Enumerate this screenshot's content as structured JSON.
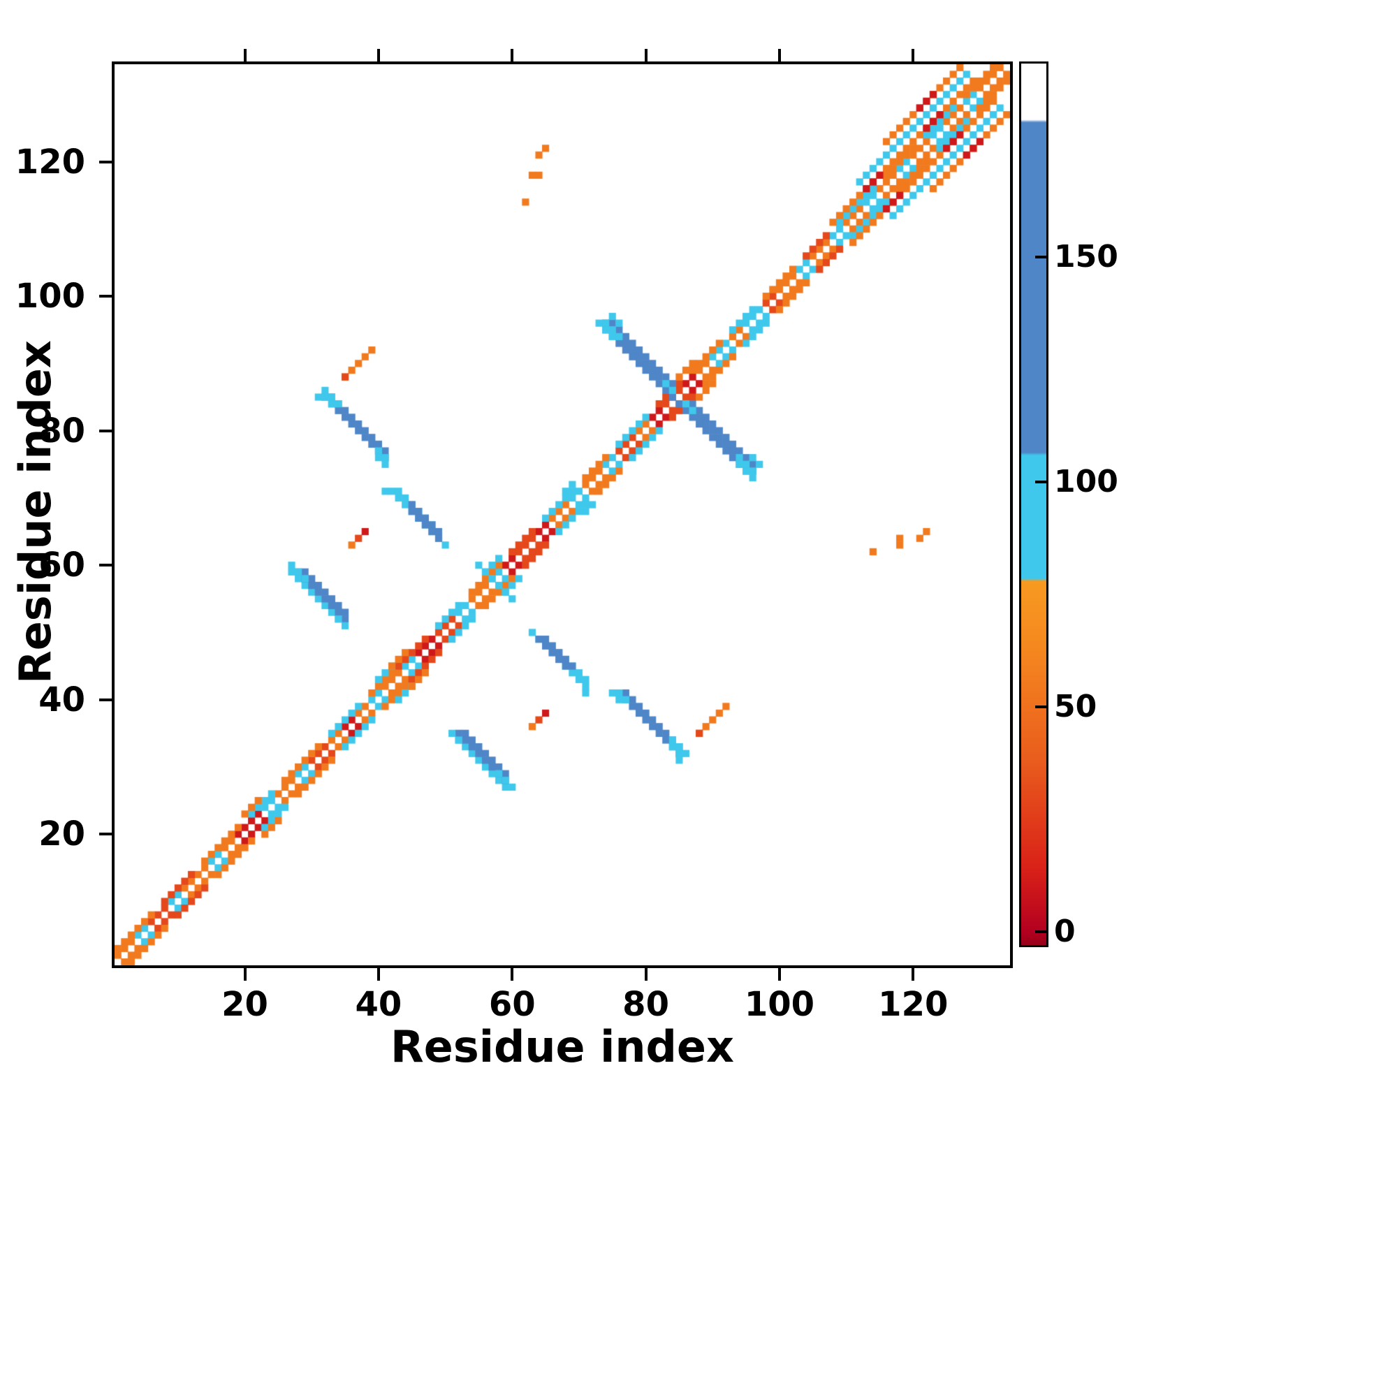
{
  "figure": {
    "xlabel": "Residue index",
    "ylabel": "Residue index",
    "x_ticks": [
      20,
      40,
      60,
      80,
      100,
      120
    ],
    "y_ticks": [
      20,
      40,
      60,
      80,
      100,
      120
    ],
    "n_residues": 134,
    "background": "#ffffff"
  },
  "colorbar": {
    "ticks": [
      0,
      50,
      100,
      150
    ],
    "vmin": -3,
    "vmax": 193,
    "stops": [
      [
        -3,
        "#96001a"
      ],
      [
        0,
        "#b30020"
      ],
      [
        14,
        "#d92118"
      ],
      [
        38,
        "#e95c1d"
      ],
      [
        62,
        "#f5861f"
      ],
      [
        78,
        "#f79a21"
      ],
      [
        78.6,
        "#3fc8ec"
      ],
      [
        106,
        "#3fc8ec"
      ],
      [
        106.6,
        "#4f86c8"
      ],
      [
        180,
        "#4f86c8"
      ],
      [
        180.6,
        "#ffffff"
      ],
      [
        193,
        "#ffffff"
      ]
    ]
  },
  "chart_data": {
    "type": "heatmap",
    "title": "",
    "xlabel": "Residue index",
    "ylabel": "Residue index",
    "xlim": [
      0.5,
      134.5
    ],
    "ylim": [
      0.5,
      134.5
    ],
    "grid": false,
    "legend_position": "right-colorbar",
    "symmetric": true,
    "runs_format": "[i_start, j_start, di, dj, n_cells, value]; each cell (i,j) is also mirrored to (j,i)",
    "runs": [
      [
        1,
        2,
        1,
        1,
        3,
        55
      ],
      [
        4,
        5,
        1,
        1,
        2,
        90
      ],
      [
        6,
        7,
        1,
        1,
        3,
        30
      ],
      [
        9,
        10,
        1,
        1,
        2,
        90
      ],
      [
        11,
        12,
        1,
        1,
        4,
        55
      ],
      [
        15,
        16,
        1,
        1,
        2,
        90
      ],
      [
        17,
        18,
        1,
        1,
        2,
        55
      ],
      [
        19,
        20,
        1,
        1,
        4,
        10
      ],
      [
        23,
        24,
        1,
        1,
        2,
        90
      ],
      [
        25,
        26,
        1,
        1,
        3,
        55
      ],
      [
        28,
        29,
        1,
        1,
        2,
        90
      ],
      [
        30,
        31,
        1,
        1,
        3,
        30
      ],
      [
        33,
        34,
        1,
        1,
        2,
        55
      ],
      [
        35,
        36,
        1,
        1,
        2,
        10
      ],
      [
        37,
        38,
        1,
        1,
        2,
        55
      ],
      [
        39,
        40,
        1,
        1,
        2,
        90
      ],
      [
        41,
        42,
        1,
        1,
        3,
        55
      ],
      [
        44,
        45,
        1,
        1,
        2,
        90
      ],
      [
        46,
        47,
        1,
        1,
        3,
        10
      ],
      [
        49,
        50,
        1,
        1,
        3,
        30
      ],
      [
        52,
        53,
        1,
        1,
        2,
        90
      ],
      [
        54,
        55,
        1,
        1,
        3,
        55
      ],
      [
        57,
        58,
        1,
        1,
        2,
        90
      ],
      [
        59,
        60,
        1,
        1,
        2,
        10
      ],
      [
        61,
        62,
        1,
        1,
        3,
        30
      ],
      [
        64,
        65,
        1,
        1,
        2,
        10
      ],
      [
        66,
        67,
        1,
        1,
        3,
        55
      ],
      [
        69,
        70,
        1,
        1,
        2,
        90
      ],
      [
        71,
        72,
        1,
        1,
        3,
        55
      ],
      [
        74,
        75,
        1,
        1,
        2,
        90
      ],
      [
        76,
        77,
        1,
        1,
        3,
        30
      ],
      [
        79,
        80,
        1,
        1,
        2,
        55
      ],
      [
        81,
        82,
        1,
        1,
        2,
        10
      ],
      [
        83,
        84,
        1,
        1,
        3,
        30
      ],
      [
        86,
        87,
        1,
        1,
        2,
        10
      ],
      [
        88,
        89,
        1,
        1,
        2,
        55
      ],
      [
        90,
        91,
        1,
        1,
        3,
        90
      ],
      [
        93,
        94,
        1,
        1,
        2,
        55
      ],
      [
        95,
        96,
        1,
        1,
        3,
        90
      ],
      [
        98,
        99,
        1,
        1,
        2,
        30
      ],
      [
        100,
        101,
        1,
        1,
        3,
        55
      ],
      [
        103,
        104,
        1,
        1,
        2,
        90
      ],
      [
        105,
        106,
        1,
        1,
        3,
        55
      ],
      [
        108,
        109,
        1,
        1,
        2,
        90
      ],
      [
        110,
        111,
        1,
        1,
        3,
        55
      ],
      [
        113,
        114,
        1,
        1,
        2,
        90
      ],
      [
        115,
        116,
        1,
        1,
        3,
        55
      ],
      [
        118,
        119,
        1,
        1,
        2,
        90
      ],
      [
        120,
        121,
        1,
        1,
        3,
        55
      ],
      [
        123,
        124,
        1,
        1,
        2,
        90
      ],
      [
        125,
        126,
        1,
        1,
        3,
        55
      ],
      [
        128,
        129,
        1,
        1,
        2,
        90
      ],
      [
        130,
        131,
        1,
        1,
        4,
        55
      ],
      [
        1,
        3,
        1,
        1,
        6,
        55
      ],
      [
        8,
        10,
        1,
        1,
        5,
        30
      ],
      [
        14,
        16,
        1,
        1,
        6,
        55
      ],
      [
        21,
        23,
        1,
        1,
        4,
        90
      ],
      [
        26,
        28,
        1,
        1,
        6,
        55
      ],
      [
        33,
        35,
        1,
        1,
        5,
        90
      ],
      [
        39,
        41,
        1,
        1,
        4,
        55
      ],
      [
        43,
        45,
        1,
        1,
        5,
        30
      ],
      [
        49,
        51,
        1,
        1,
        4,
        90
      ],
      [
        54,
        56,
        1,
        1,
        5,
        55
      ],
      [
        60,
        62,
        1,
        1,
        4,
        30
      ],
      [
        65,
        67,
        1,
        1,
        5,
        90
      ],
      [
        71,
        73,
        1,
        1,
        4,
        55
      ],
      [
        76,
        78,
        1,
        1,
        5,
        90
      ],
      [
        82,
        84,
        1,
        1,
        4,
        30
      ],
      [
        87,
        89,
        1,
        1,
        5,
        55
      ],
      [
        93,
        95,
        1,
        1,
        4,
        90
      ],
      [
        98,
        100,
        1,
        1,
        5,
        55
      ],
      [
        104,
        106,
        1,
        1,
        4,
        30
      ],
      [
        109,
        111,
        1,
        1,
        6,
        90
      ],
      [
        116,
        118,
        1,
        1,
        5,
        55
      ],
      [
        122,
        124,
        1,
        1,
        5,
        90
      ],
      [
        128,
        130,
        1,
        1,
        5,
        55
      ],
      [
        20,
        23,
        1,
        1,
        3,
        55
      ],
      [
        40,
        43,
        1,
        1,
        3,
        90
      ],
      [
        42,
        45,
        1,
        1,
        3,
        55
      ],
      [
        56,
        59,
        1,
        1,
        3,
        90
      ],
      [
        85,
        88,
        1,
        1,
        3,
        55
      ],
      [
        68,
        71,
        1,
        1,
        2,
        90
      ],
      [
        108,
        111,
        1,
        1,
        22,
        55
      ],
      [
        113,
        116,
        1,
        1,
        3,
        10
      ],
      [
        122,
        125,
        1,
        1,
        3,
        10
      ],
      [
        112,
        117,
        1,
        1,
        17,
        90
      ],
      [
        116,
        123,
        1,
        1,
        12,
        55
      ],
      [
        121,
        128,
        1,
        1,
        3,
        10
      ],
      [
        32,
        85,
        1,
        -1,
        10,
        130
      ],
      [
        33,
        85,
        1,
        -1,
        9,
        130
      ],
      [
        31,
        85,
        1,
        -1,
        1,
        90
      ],
      [
        32,
        85,
        1,
        -1,
        2,
        90
      ],
      [
        32,
        86,
        1,
        -1,
        3,
        90
      ],
      [
        40,
        77,
        1,
        -1,
        2,
        90
      ],
      [
        40,
        76,
        1,
        -1,
        2,
        90
      ],
      [
        42,
        71,
        1,
        -1,
        9,
        90
      ],
      [
        43,
        71,
        1,
        -1,
        6,
        90
      ],
      [
        45,
        69,
        1,
        -1,
        5,
        130
      ],
      [
        45,
        68,
        1,
        -1,
        5,
        130
      ],
      [
        41,
        71,
        1,
        -1,
        1,
        90
      ],
      [
        27,
        59,
        1,
        -1,
        8,
        90
      ],
      [
        28,
        59,
        1,
        -1,
        8,
        130
      ],
      [
        29,
        59,
        1,
        -1,
        7,
        130
      ],
      [
        27,
        60,
        1,
        -1,
        3,
        90
      ],
      [
        34,
        52,
        1,
        -1,
        2,
        90
      ],
      [
        74,
        96,
        1,
        -1,
        11,
        130
      ],
      [
        75,
        96,
        1,
        -1,
        10,
        130
      ],
      [
        74,
        95,
        1,
        -1,
        11,
        130
      ],
      [
        73,
        96,
        1,
        -1,
        1,
        90
      ],
      [
        74,
        96,
        1,
        -1,
        3,
        90
      ],
      [
        74,
        95,
        1,
        -1,
        2,
        90
      ],
      [
        75,
        97,
        1,
        -1,
        2,
        90
      ],
      [
        83,
        87,
        1,
        -1,
        2,
        90
      ],
      [
        55,
        60,
        1,
        -1,
        3,
        90
      ],
      [
        35,
        88,
        1,
        1,
        5,
        55
      ],
      [
        35,
        88,
        1,
        1,
        1,
        30
      ],
      [
        36,
        63,
        1,
        0,
        1,
        55
      ],
      [
        37,
        64,
        1,
        0,
        1,
        30
      ],
      [
        38,
        65,
        1,
        0,
        1,
        10
      ],
      [
        62,
        114,
        1,
        0,
        1,
        55
      ],
      [
        63,
        118,
        1,
        0,
        2,
        55
      ],
      [
        64,
        121,
        1,
        0,
        1,
        55
      ],
      [
        65,
        122,
        1,
        0,
        1,
        55
      ]
    ]
  }
}
